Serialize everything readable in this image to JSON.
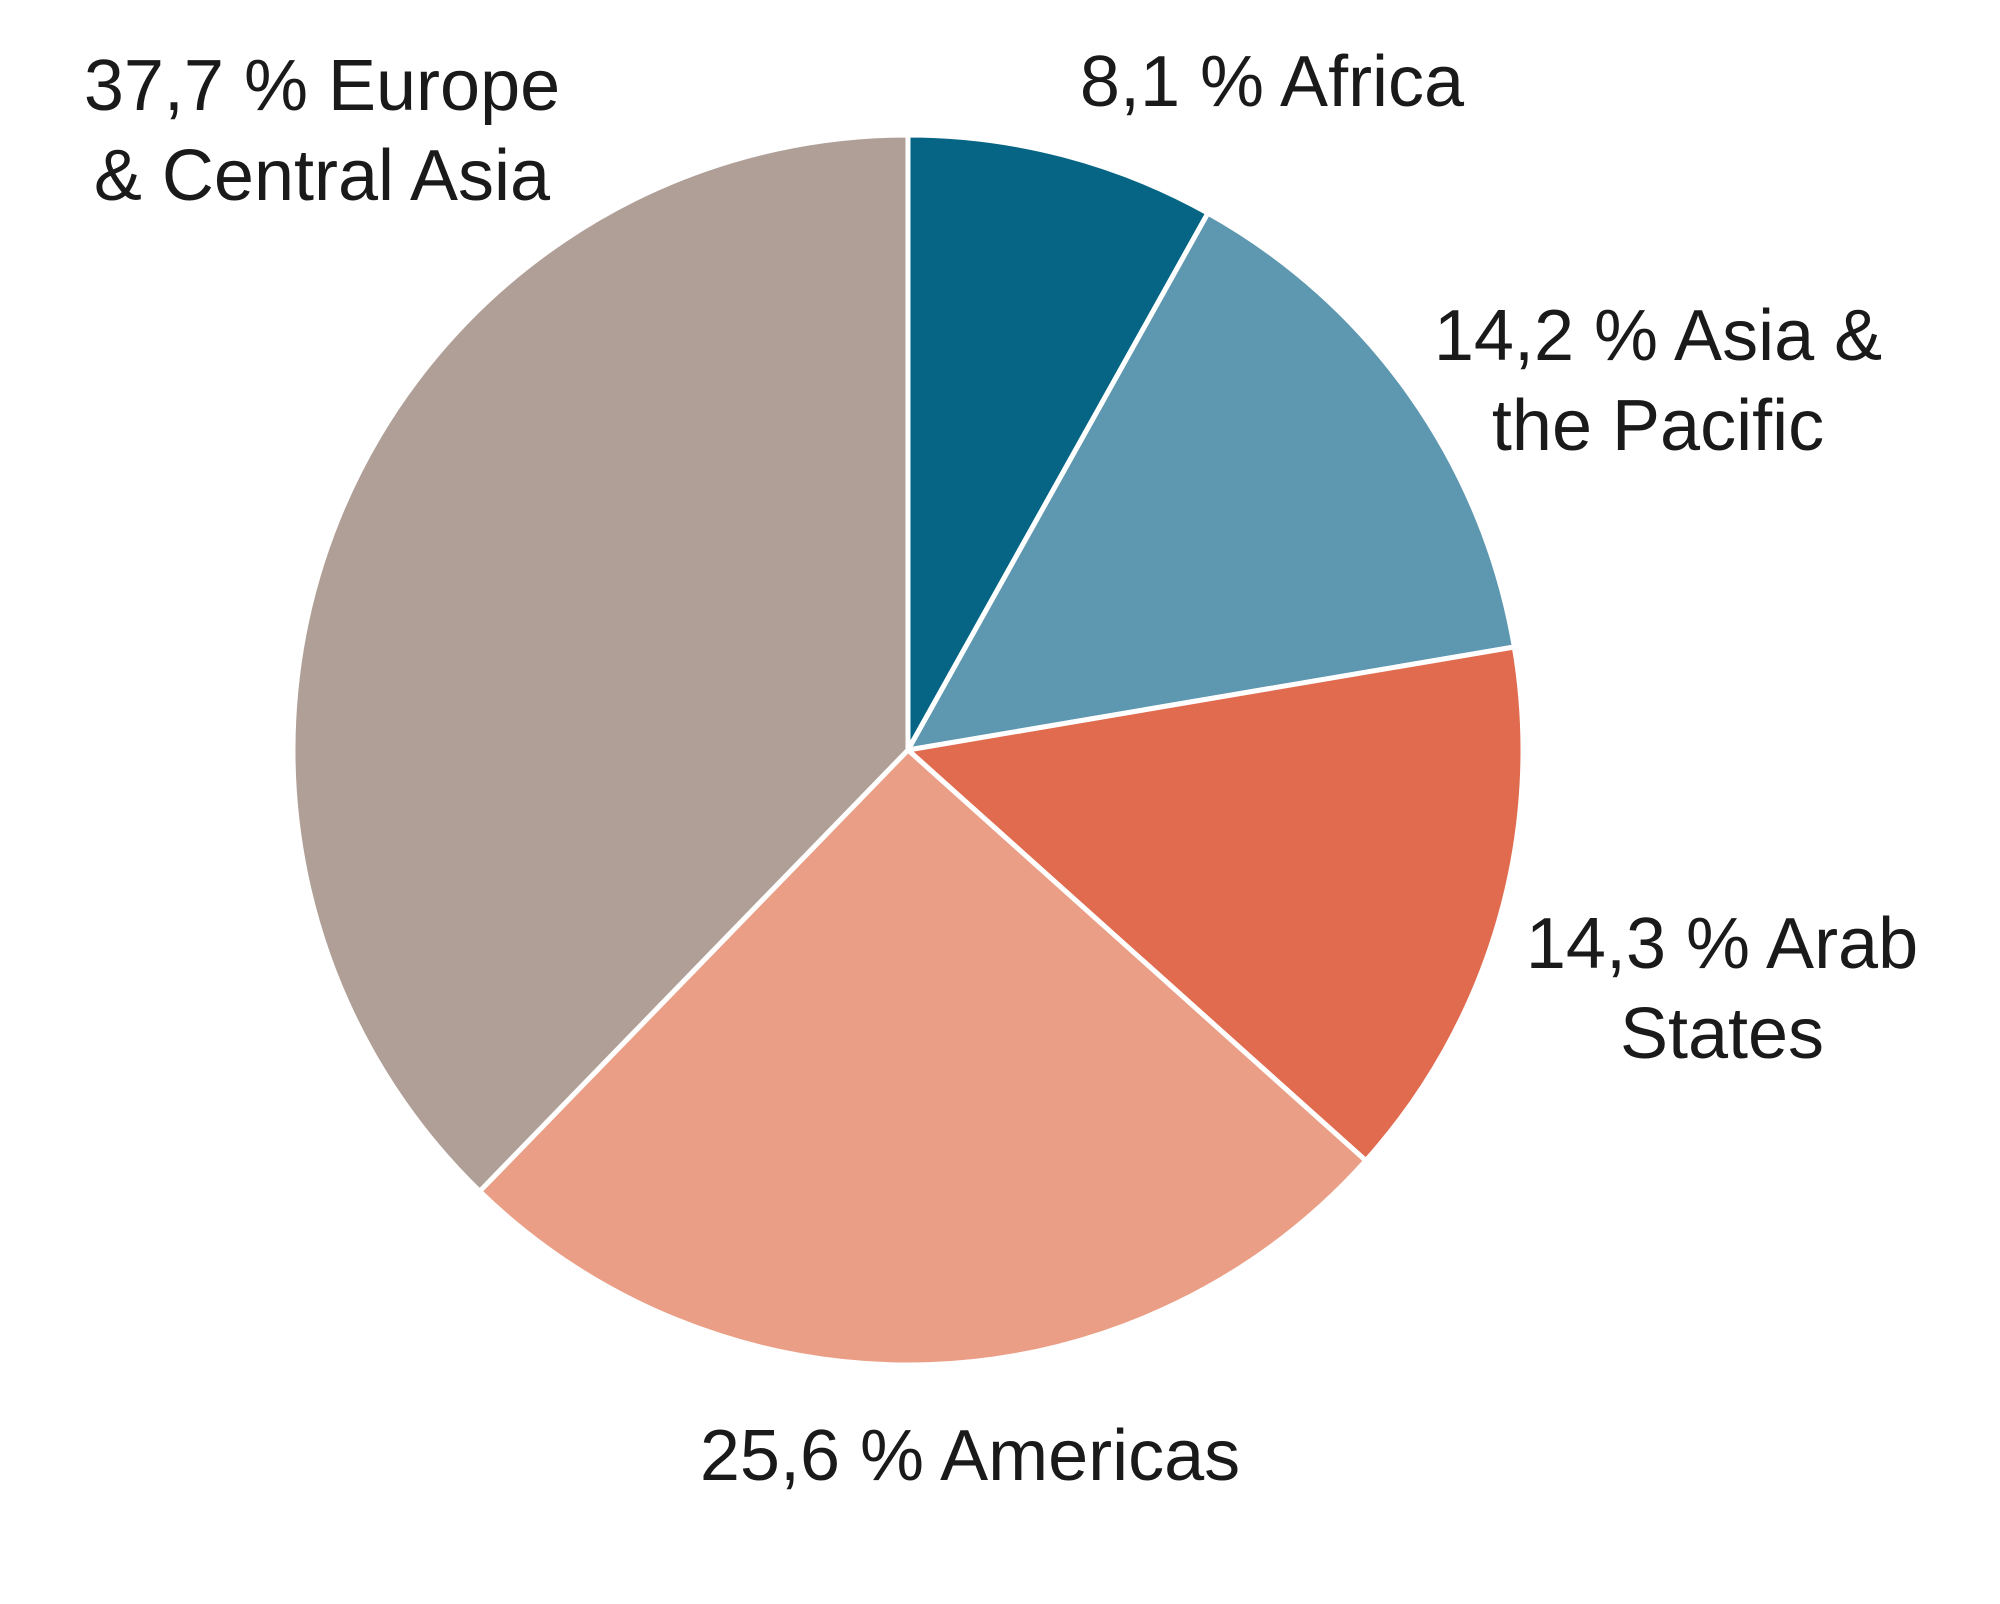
{
  "chart_data": {
    "type": "pie",
    "unit": "%",
    "start_angle_deg": 0,
    "direction": "clockwise",
    "slices": [
      {
        "label": "Africa",
        "value": 8.1,
        "label_lines": [
          "8,1 % Africa"
        ],
        "color": "#066584"
      },
      {
        "label": "Asia & the Pacific",
        "value": 14.2,
        "label_lines": [
          "14,2 % Asia &",
          "the Pacific"
        ],
        "color": "#5e97b0"
      },
      {
        "label": "Arab States",
        "value": 14.3,
        "label_lines": [
          "14,3 % Arab",
          "States"
        ],
        "color": "#e06b4f"
      },
      {
        "label": "Americas",
        "value": 25.6,
        "label_lines": [
          "25,6 % Americas"
        ],
        "color": "#ea9e85"
      },
      {
        "label": "Europe & Central Asia",
        "value": 37.7,
        "label_lines": [
          "37,7 % Europe",
          "& Central Asia"
        ],
        "color": "#b09f97"
      }
    ],
    "legend": "none",
    "title": ""
  }
}
